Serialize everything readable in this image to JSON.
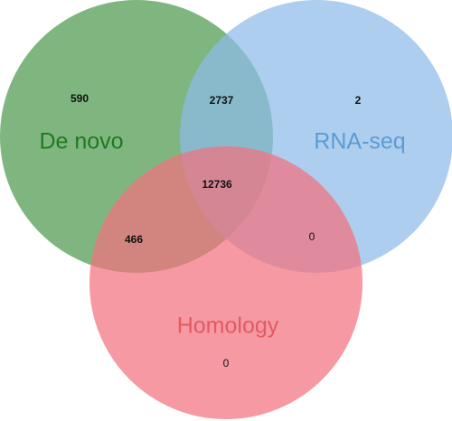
{
  "chart_data": {
    "type": "venn",
    "sets": [
      {
        "name": "De novo",
        "color": "#4e9a4f",
        "label_color": "#1f7a1f"
      },
      {
        "name": "RNA-seq",
        "color": "#8dbbe8",
        "label_color": "#5b9bd5"
      },
      {
        "name": "Homology",
        "color": "#f2727e",
        "label_color": "#e25a63"
      }
    ],
    "regions": [
      {
        "sets": [
          "De novo"
        ],
        "value": 590
      },
      {
        "sets": [
          "De novo",
          "RNA-seq"
        ],
        "value": 2737
      },
      {
        "sets": [
          "RNA-seq"
        ],
        "value": 2
      },
      {
        "sets": [
          "De novo",
          "RNA-seq",
          "Homology"
        ],
        "value": 12736
      },
      {
        "sets": [
          "De novo",
          "Homology"
        ],
        "value": 466
      },
      {
        "sets": [
          "RNA-seq",
          "Homology"
        ],
        "value": 0
      },
      {
        "sets": [
          "Homology"
        ],
        "value": 0
      }
    ]
  }
}
